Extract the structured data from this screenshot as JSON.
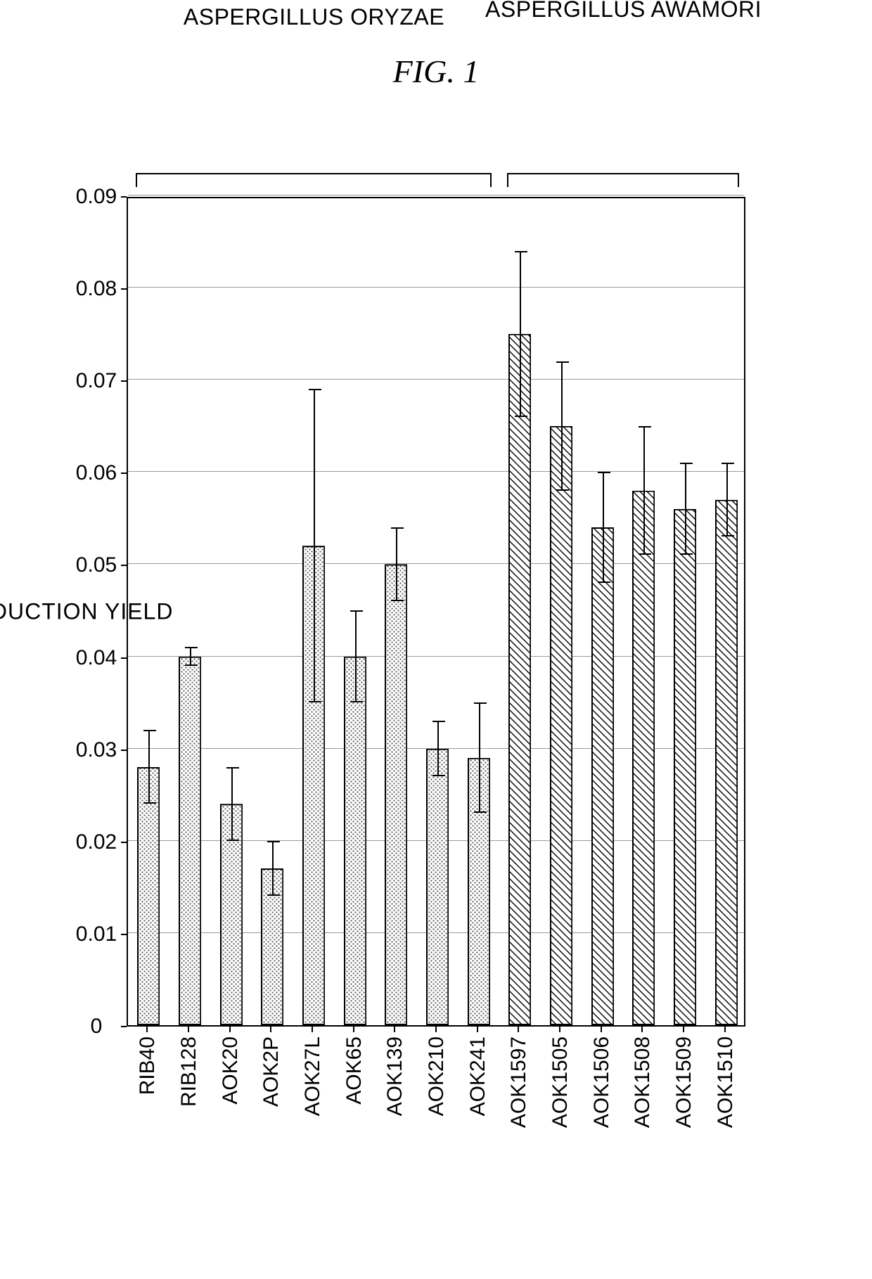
{
  "figure_title": "FIG. 1",
  "chart": {
    "type": "bar",
    "orientation": "vertical-rotated",
    "y_axis": {
      "title": "PRODUCTION YIELD",
      "min": 0,
      "max": 0.09,
      "tick_step": 0.01,
      "tick_labels": [
        "0",
        "0.01",
        "0.02",
        "0.03",
        "0.04",
        "0.05",
        "0.06",
        "0.07",
        "0.08",
        "0.09"
      ],
      "grid_color": "#9a9a9a",
      "label_fontsize": 30,
      "title_fontsize": 32
    },
    "groups": [
      {
        "label": "ASPERGILLUS ORYZAE",
        "from_index": 0,
        "to_index": 8,
        "fill_pattern": "dots"
      },
      {
        "label": "ASPERGILLUS AWAMORI",
        "from_index": 9,
        "to_index": 14,
        "fill_pattern": "hatch"
      }
    ],
    "categories": [
      "RIB40",
      "RIB128",
      "AOK20",
      "AOK2P",
      "AOK27L",
      "AOK65",
      "AOK139",
      "AOK210",
      "AOK241",
      "AOK1597",
      "AOK1505",
      "AOK1506",
      "AOK1508",
      "AOK1509",
      "AOK1510"
    ],
    "values": [
      0.028,
      0.04,
      0.024,
      0.017,
      0.052,
      0.04,
      0.05,
      0.03,
      0.029,
      0.075,
      0.065,
      0.054,
      0.058,
      0.056,
      0.057
    ],
    "errors": [
      0.004,
      0.001,
      0.004,
      0.003,
      0.017,
      0.005,
      0.004,
      0.003,
      0.006,
      0.009,
      0.007,
      0.006,
      0.007,
      0.005,
      0.004
    ],
    "bar_width_ratio": 0.55,
    "bar_border_color": "#000000",
    "background_color": "#ffffff",
    "frame_border_color": "#000000",
    "label_fontsize": 30
  },
  "title_fontsize": 46,
  "title_font_style": "italic"
}
